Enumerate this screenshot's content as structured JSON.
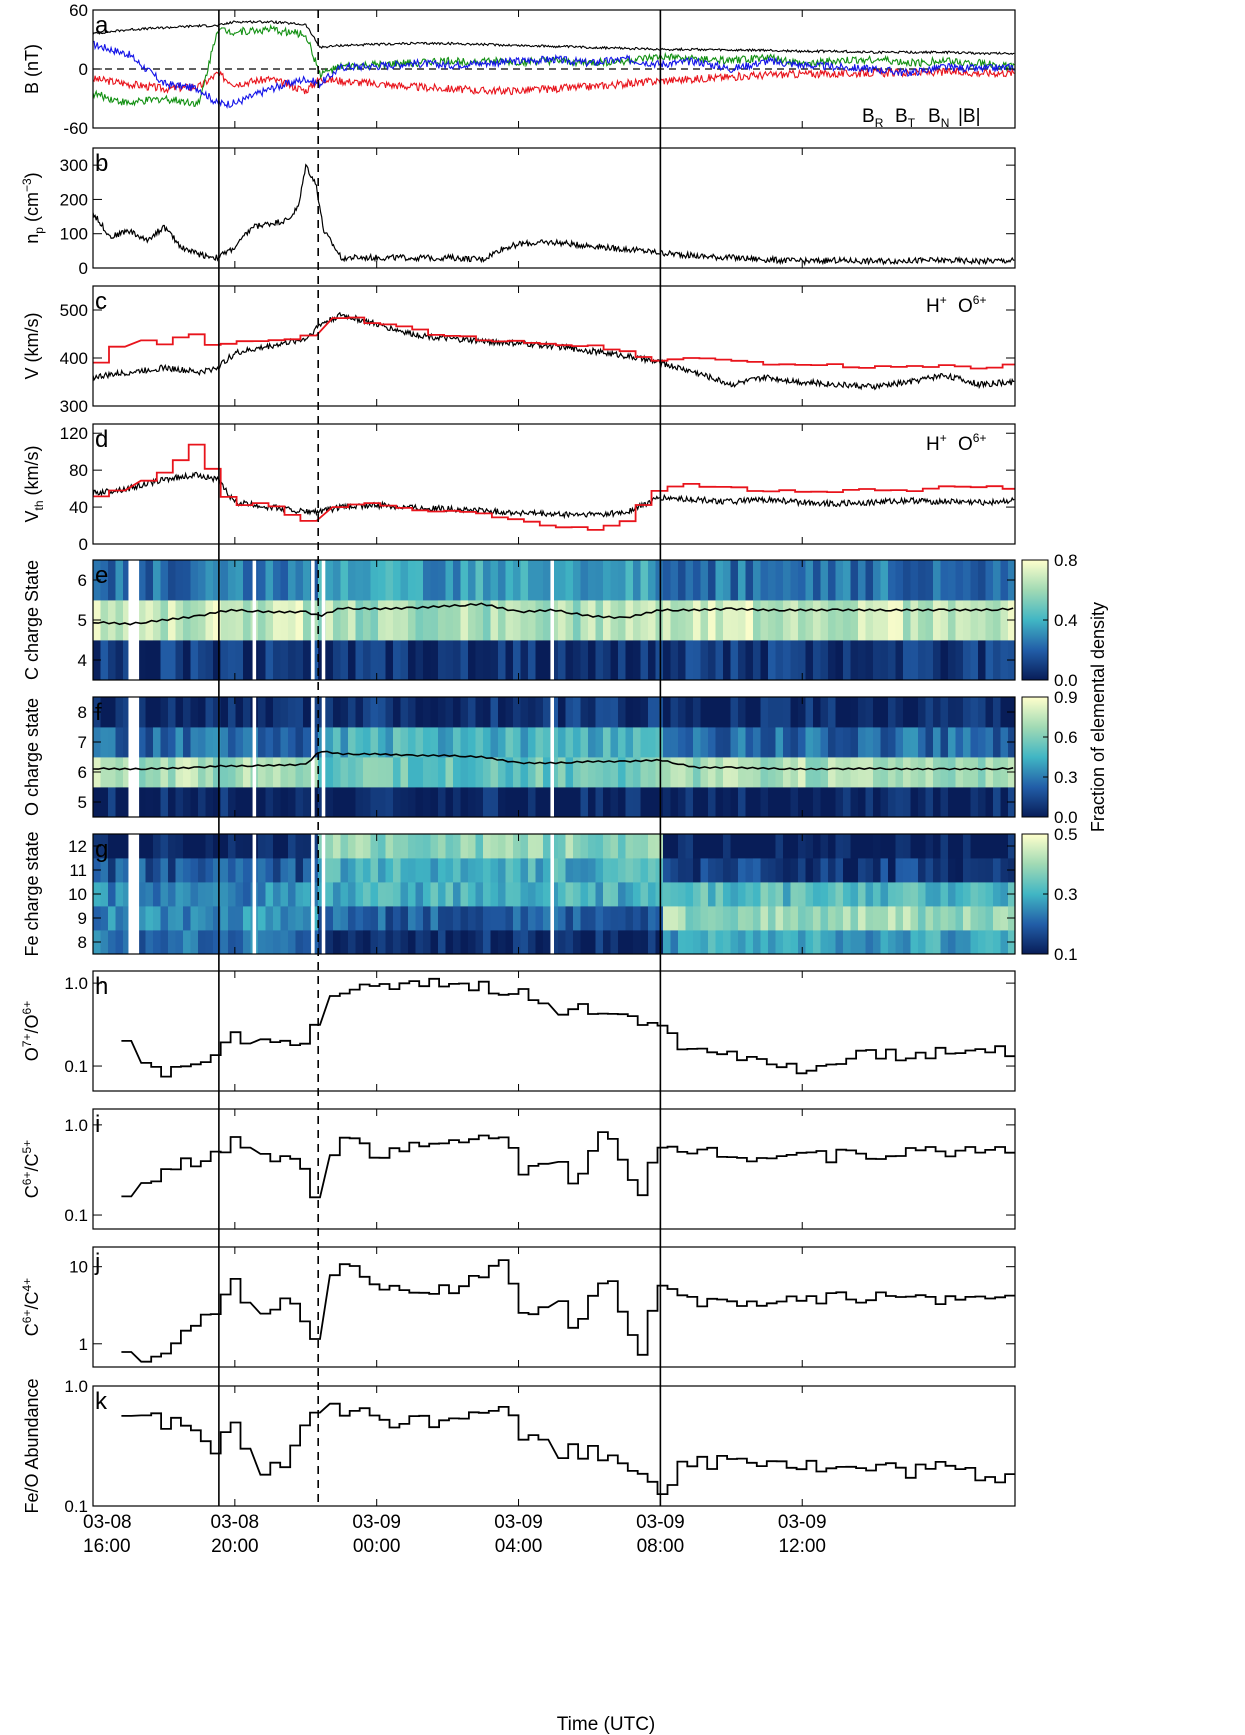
{
  "colors": {
    "BR": "#e8141c",
    "BT": "#129012",
    "BN": "#1414e8",
    "Bmag": "#000000",
    "proton": "#000000",
    "oxygen": "#e8141c"
  },
  "xaxis": {
    "range_hours": [
      16,
      42
    ],
    "ticks": [
      {
        "h": 16,
        "date": "03-08",
        "time": "16:00"
      },
      {
        "h": 20,
        "date": "03-08",
        "time": "20:00"
      },
      {
        "h": 24,
        "date": "03-09",
        "time": "00:00"
      },
      {
        "h": 28,
        "date": "03-09",
        "time": "04:00"
      },
      {
        "h": 32,
        "date": "03-09",
        "time": "08:00"
      },
      {
        "h": 36,
        "date": "03-09",
        "time": "12:00"
      }
    ],
    "label": "Time (UTC)"
  },
  "boundaries": {
    "solid_hours": [
      19.55,
      32.0
    ],
    "dashed_hours": [
      22.35
    ]
  },
  "colorbar_label": "Fraction of elemental density",
  "chart_data": [
    {
      "panel": "a",
      "type": "line",
      "ylabel": "B (nT)",
      "ylim": [
        -60,
        60
      ],
      "yticks": [
        "60",
        "0",
        "-60"
      ],
      "legend": [
        "B",
        "B",
        "B",
        "|B|"
      ],
      "legend_sub": [
        "R",
        "T",
        "N",
        ""
      ],
      "legend_position": "bottom-right",
      "x": [
        16,
        17,
        18,
        19,
        19.5,
        20,
        21,
        22,
        22.4,
        23,
        24,
        25,
        26,
        27,
        28,
        29,
        30,
        31,
        32,
        33,
        34,
        35,
        36,
        37,
        38,
        39,
        40,
        41,
        42
      ],
      "series": [
        {
          "name": "BR",
          "values": [
            -10,
            -15,
            -20,
            -18,
            -5,
            -15,
            -10,
            -22,
            -10,
            -12,
            -15,
            -18,
            -20,
            -22,
            -22,
            -20,
            -18,
            -15,
            -12,
            -10,
            -8,
            -6,
            -5,
            -5,
            -4,
            -4,
            -3,
            -4,
            -4
          ]
        },
        {
          "name": "BT",
          "values": [
            -25,
            -35,
            -30,
            -35,
            40,
            38,
            40,
            35,
            -5,
            2,
            4,
            6,
            8,
            8,
            7,
            8,
            6,
            8,
            12,
            10,
            8,
            12,
            5,
            8,
            10,
            6,
            8,
            6,
            2
          ]
        },
        {
          "name": "BN",
          "values": [
            25,
            15,
            -15,
            -20,
            -35,
            -35,
            -20,
            -10,
            -15,
            2,
            3,
            6,
            4,
            6,
            8,
            10,
            6,
            10,
            5,
            8,
            0,
            8,
            4,
            2,
            0,
            -4,
            2,
            0,
            2
          ]
        },
        {
          "name": "|B|",
          "values": [
            36,
            40,
            42,
            44,
            44,
            48,
            48,
            45,
            22,
            24,
            25,
            26,
            26,
            25,
            24,
            23,
            22,
            21,
            20,
            20,
            19,
            19,
            18,
            18,
            17,
            17,
            17,
            16,
            16
          ]
        }
      ]
    },
    {
      "panel": "b",
      "type": "line",
      "ylabel": "n",
      "ylabel_sub": "p",
      "ylabel_unit": "(cm",
      "ylabel_sup": "−3",
      "ylim": [
        0,
        350
      ],
      "yticks": [
        "0",
        "100",
        "200",
        "300"
      ],
      "x": [
        16,
        16.5,
        17,
        17.5,
        18,
        18.5,
        19,
        19.5,
        20,
        20.5,
        21,
        21.5,
        21.8,
        22,
        22.3,
        22.5,
        23,
        24,
        25,
        26,
        27,
        27.5,
        28,
        29,
        30,
        31,
        32,
        33,
        34,
        35,
        36,
        37,
        38,
        39,
        40,
        41,
        42
      ],
      "series": [
        {
          "name": "H+",
          "values": [
            160,
            90,
            110,
            80,
            120,
            60,
            40,
            30,
            60,
            120,
            130,
            140,
            180,
            300,
            240,
            110,
            30,
            30,
            30,
            30,
            25,
            55,
            70,
            75,
            65,
            55,
            45,
            35,
            30,
            25,
            20,
            22,
            20,
            22,
            22,
            20,
            22
          ]
        }
      ]
    },
    {
      "panel": "c",
      "type": "line",
      "ylabel": "V (km/s)",
      "ylim": [
        300,
        550
      ],
      "yticks": [
        "300",
        "400",
        "500"
      ],
      "legend": [
        "H",
        "O"
      ],
      "legend_sup": [
        "+",
        "6+"
      ],
      "legend_position": "top-right",
      "x": [
        16,
        17,
        18,
        19,
        19.5,
        20,
        21,
        22,
        22.4,
        23,
        24,
        25,
        26,
        27,
        28,
        29,
        30,
        31,
        32,
        33,
        34,
        35,
        36,
        37,
        38,
        39,
        40,
        41,
        42
      ],
      "series": [
        {
          "name": "H+",
          "values": [
            360,
            370,
            380,
            370,
            380,
            410,
            425,
            440,
            470,
            490,
            470,
            450,
            440,
            435,
            430,
            425,
            415,
            405,
            390,
            370,
            345,
            360,
            350,
            345,
            340,
            350,
            365,
            345,
            350
          ]
        },
        {
          "name": "O6+",
          "values": [
            380,
            440,
            430,
            450,
            420,
            430,
            440,
            435,
            480,
            485,
            475,
            460,
            445,
            440,
            435,
            430,
            425,
            415,
            395,
            400,
            395,
            390,
            385,
            385,
            380,
            380,
            385,
            380,
            385
          ]
        }
      ]
    },
    {
      "panel": "d",
      "type": "line",
      "ylabel": "V",
      "ylabel_sub": "th",
      "ylabel_unit": "(km/s)",
      "ylim": [
        0,
        130
      ],
      "yticks": [
        "0",
        "40",
        "80",
        "120"
      ],
      "legend": [
        "H",
        "O"
      ],
      "legend_sup": [
        "+",
        "6+"
      ],
      "legend_position": "top-right",
      "x": [
        16,
        17,
        18,
        19,
        19.5,
        20,
        21,
        22,
        22.4,
        23,
        24,
        25,
        26,
        27,
        28,
        29,
        30,
        31,
        32,
        33,
        34,
        35,
        36,
        37,
        38,
        39,
        40,
        41,
        42
      ],
      "series": [
        {
          "name": "H+",
          "values": [
            55,
            60,
            70,
            75,
            70,
            45,
            40,
            35,
            35,
            40,
            42,
            40,
            38,
            36,
            34,
            32,
            32,
            34,
            50,
            48,
            46,
            48,
            45,
            44,
            45,
            47,
            46,
            45,
            47
          ]
        },
        {
          "name": "O6+",
          "values": [
            50,
            60,
            75,
            110,
            70,
            40,
            45,
            25,
            20,
            40,
            45,
            38,
            35,
            34,
            25,
            20,
            15,
            22,
            60,
            65,
            60,
            58,
            56,
            55,
            60,
            58,
            62,
            60,
            62
          ]
        }
      ]
    },
    {
      "panel": "e",
      "type": "heatmap",
      "ylabel": "C charge State",
      "rows": [
        4,
        5,
        6
      ],
      "clim": [
        0,
        0.8
      ],
      "cbar_ticks": [
        "0.0",
        "0.4",
        "0.8"
      ],
      "row_fraction": {
        "4": 0.08,
        "5": 0.68,
        "6": 0.24
      },
      "mean_charge_x": [
        16,
        17,
        18,
        19,
        19.5,
        20,
        21,
        22,
        22.4,
        23,
        24,
        25,
        26,
        27,
        28,
        29,
        30,
        31,
        32,
        33,
        34,
        35,
        36,
        37,
        38,
        39,
        40,
        41,
        42
      ],
      "mean_charge": [
        4.95,
        4.9,
        5.0,
        5.1,
        5.2,
        5.25,
        5.2,
        5.2,
        5.1,
        5.3,
        5.28,
        5.3,
        5.35,
        5.4,
        5.2,
        5.25,
        5.1,
        5.05,
        5.25,
        5.25,
        5.28,
        5.25,
        5.25,
        5.25,
        5.25,
        5.25,
        5.25,
        5.25,
        5.28
      ]
    },
    {
      "panel": "f",
      "type": "heatmap",
      "ylabel": "O charge state",
      "rows": [
        5,
        6,
        7,
        8
      ],
      "clim": [
        0,
        0.9
      ],
      "cbar_ticks": [
        "0.0",
        "0.3",
        "0.6",
        "0.9"
      ],
      "row_fraction": {
        "5": 0.02,
        "6": 0.7,
        "7": 0.25,
        "8": 0.03
      },
      "mean_charge_x": [
        16,
        17,
        18,
        19,
        19.5,
        20,
        21,
        22,
        22.4,
        23,
        24,
        25,
        26,
        27,
        28,
        29,
        30,
        31,
        32,
        33,
        34,
        35,
        36,
        37,
        38,
        39,
        40,
        41,
        42
      ],
      "mean_charge": [
        6.12,
        6.1,
        6.12,
        6.15,
        6.2,
        6.2,
        6.22,
        6.25,
        6.7,
        6.6,
        6.6,
        6.55,
        6.55,
        6.5,
        6.3,
        6.3,
        6.35,
        6.35,
        6.4,
        6.15,
        6.15,
        6.12,
        6.1,
        6.1,
        6.12,
        6.1,
        6.1,
        6.1,
        6.12
      ]
    },
    {
      "panel": "g",
      "type": "heatmap",
      "ylabel": "Fe charge state",
      "rows": [
        8,
        9,
        10,
        11,
        12
      ],
      "clim": [
        0.1,
        0.5
      ],
      "cbar_ticks": [
        "0.1",
        "0.3",
        "0.5"
      ],
      "row_fraction": {
        "8": 0.22,
        "9": 0.25,
        "10": 0.25,
        "11": 0.18,
        "12": 0.1
      }
    },
    {
      "panel": "h",
      "type": "line",
      "ylabel": "O",
      "ylabel_sup1": "7+",
      "ylabel_mid": "/O",
      "ylabel_sup2": "6+",
      "scale": "log",
      "ylim": [
        0.05,
        1.4
      ],
      "yticks": [
        "0.1",
        "1.0"
      ],
      "x": [
        16.8,
        17.2,
        17.6,
        18,
        18.5,
        19,
        19.5,
        20,
        20.5,
        21,
        21.5,
        22,
        22.4,
        23,
        24,
        25,
        26,
        27,
        28,
        29,
        30,
        31,
        32,
        32.5,
        33,
        34,
        35,
        36,
        37,
        38,
        39,
        40,
        41,
        42
      ],
      "series": [
        {
          "name": "O7+/O6+",
          "values": [
            0.2,
            0.12,
            0.1,
            0.09,
            0.08,
            0.1,
            0.13,
            0.25,
            0.2,
            0.18,
            0.2,
            0.22,
            0.35,
            0.8,
            0.85,
            0.9,
            1.0,
            0.9,
            0.8,
            0.4,
            0.5,
            0.45,
            0.3,
            0.2,
            0.15,
            0.15,
            0.12,
            0.08,
            0.12,
            0.14,
            0.14,
            0.15,
            0.15,
            0.16
          ]
        }
      ]
    },
    {
      "panel": "i",
      "type": "line",
      "ylabel": "C",
      "ylabel_sup1": "6+",
      "ylabel_mid": "/C",
      "ylabel_sup2": "5+",
      "scale": "log",
      "ylim": [
        0.07,
        1.5
      ],
      "yticks": [
        "0.1",
        "1.0"
      ],
      "x": [
        16.8,
        17.3,
        17.7,
        18.4,
        19,
        19.5,
        20,
        20.5,
        21,
        21.5,
        22.2,
        22.5,
        23,
        24,
        25,
        26,
        27,
        27.5,
        28,
        28.5,
        29,
        29.5,
        30,
        30.5,
        31,
        31.5,
        32,
        33,
        34,
        35,
        36,
        37,
        38,
        39,
        40,
        41,
        42
      ],
      "series": [
        {
          "name": "C6+/C5+",
          "values": [
            0.17,
            0.2,
            0.25,
            0.35,
            0.4,
            0.5,
            0.7,
            0.45,
            0.45,
            0.5,
            0.2,
            0.1,
            0.8,
            0.5,
            0.55,
            0.6,
            0.7,
            0.9,
            0.35,
            0.3,
            0.5,
            0.25,
            0.4,
            1.1,
            0.3,
            0.15,
            0.5,
            0.55,
            0.5,
            0.45,
            0.5,
            0.45,
            0.5,
            0.5,
            0.5,
            0.55,
            0.55
          ]
        }
      ]
    },
    {
      "panel": "j",
      "type": "line",
      "ylabel": "C",
      "ylabel_sup1": "6+",
      "ylabel_mid": "/C",
      "ylabel_sup2": "4+",
      "scale": "log",
      "ylim": [
        0.5,
        18
      ],
      "yticks": [
        "1",
        "10"
      ],
      "x": [
        16.8,
        17.3,
        17.7,
        18.4,
        19,
        19.5,
        20,
        20.5,
        21,
        21.5,
        22.2,
        22.5,
        23,
        24,
        25,
        26,
        27,
        27.5,
        28,
        28.5,
        29,
        29.5,
        30,
        30.5,
        31,
        31.5,
        32,
        33,
        34,
        35,
        36,
        37,
        38,
        39,
        40,
        41,
        42
      ],
      "series": [
        {
          "name": "C6+/C4+",
          "values": [
            0.85,
            0.65,
            0.55,
            1.0,
            1.8,
            2.5,
            6.5,
            2.5,
            2.5,
            3.5,
            1.2,
            0.6,
            12,
            6,
            4,
            5,
            7,
            15,
            3,
            2.5,
            5,
            1.5,
            3,
            8,
            1.5,
            0.7,
            5,
            3.5,
            3.2,
            3.5,
            3.8,
            4.2,
            4.0,
            4.2,
            3.5,
            3.8,
            4.5
          ]
        }
      ]
    },
    {
      "panel": "k",
      "type": "line",
      "ylabel": "Fe/O Abundance",
      "scale": "log",
      "ylim": [
        0.1,
        1.0
      ],
      "yticks": [
        "0.1",
        "1.0"
      ],
      "x": [
        16.8,
        17.3,
        17.7,
        18.4,
        19,
        19.5,
        20,
        20.5,
        21,
        21.5,
        22.2,
        22.5,
        23,
        24,
        25,
        26,
        27,
        27.5,
        28,
        28.5,
        29,
        30,
        31,
        32,
        32.5,
        33,
        34,
        35,
        36,
        37,
        38,
        39,
        40,
        41,
        42
      ],
      "series": [
        {
          "name": "Fe/O",
          "values": [
            0.5,
            0.6,
            0.6,
            0.45,
            0.35,
            0.28,
            0.45,
            0.2,
            0.2,
            0.2,
            0.65,
            0.7,
            0.6,
            0.55,
            0.5,
            0.55,
            0.65,
            0.75,
            0.4,
            0.35,
            0.3,
            0.28,
            0.25,
            0.14,
            0.2,
            0.22,
            0.25,
            0.25,
            0.22,
            0.2,
            0.2,
            0.2,
            0.2,
            0.18,
            0.18
          ]
        }
      ]
    }
  ],
  "gaps_hours": [
    [
      17.0,
      17.3
    ],
    [
      20.5,
      20.6
    ],
    [
      22.15,
      22.25
    ],
    [
      22.45,
      22.55
    ],
    [
      28.9,
      29.0
    ]
  ]
}
